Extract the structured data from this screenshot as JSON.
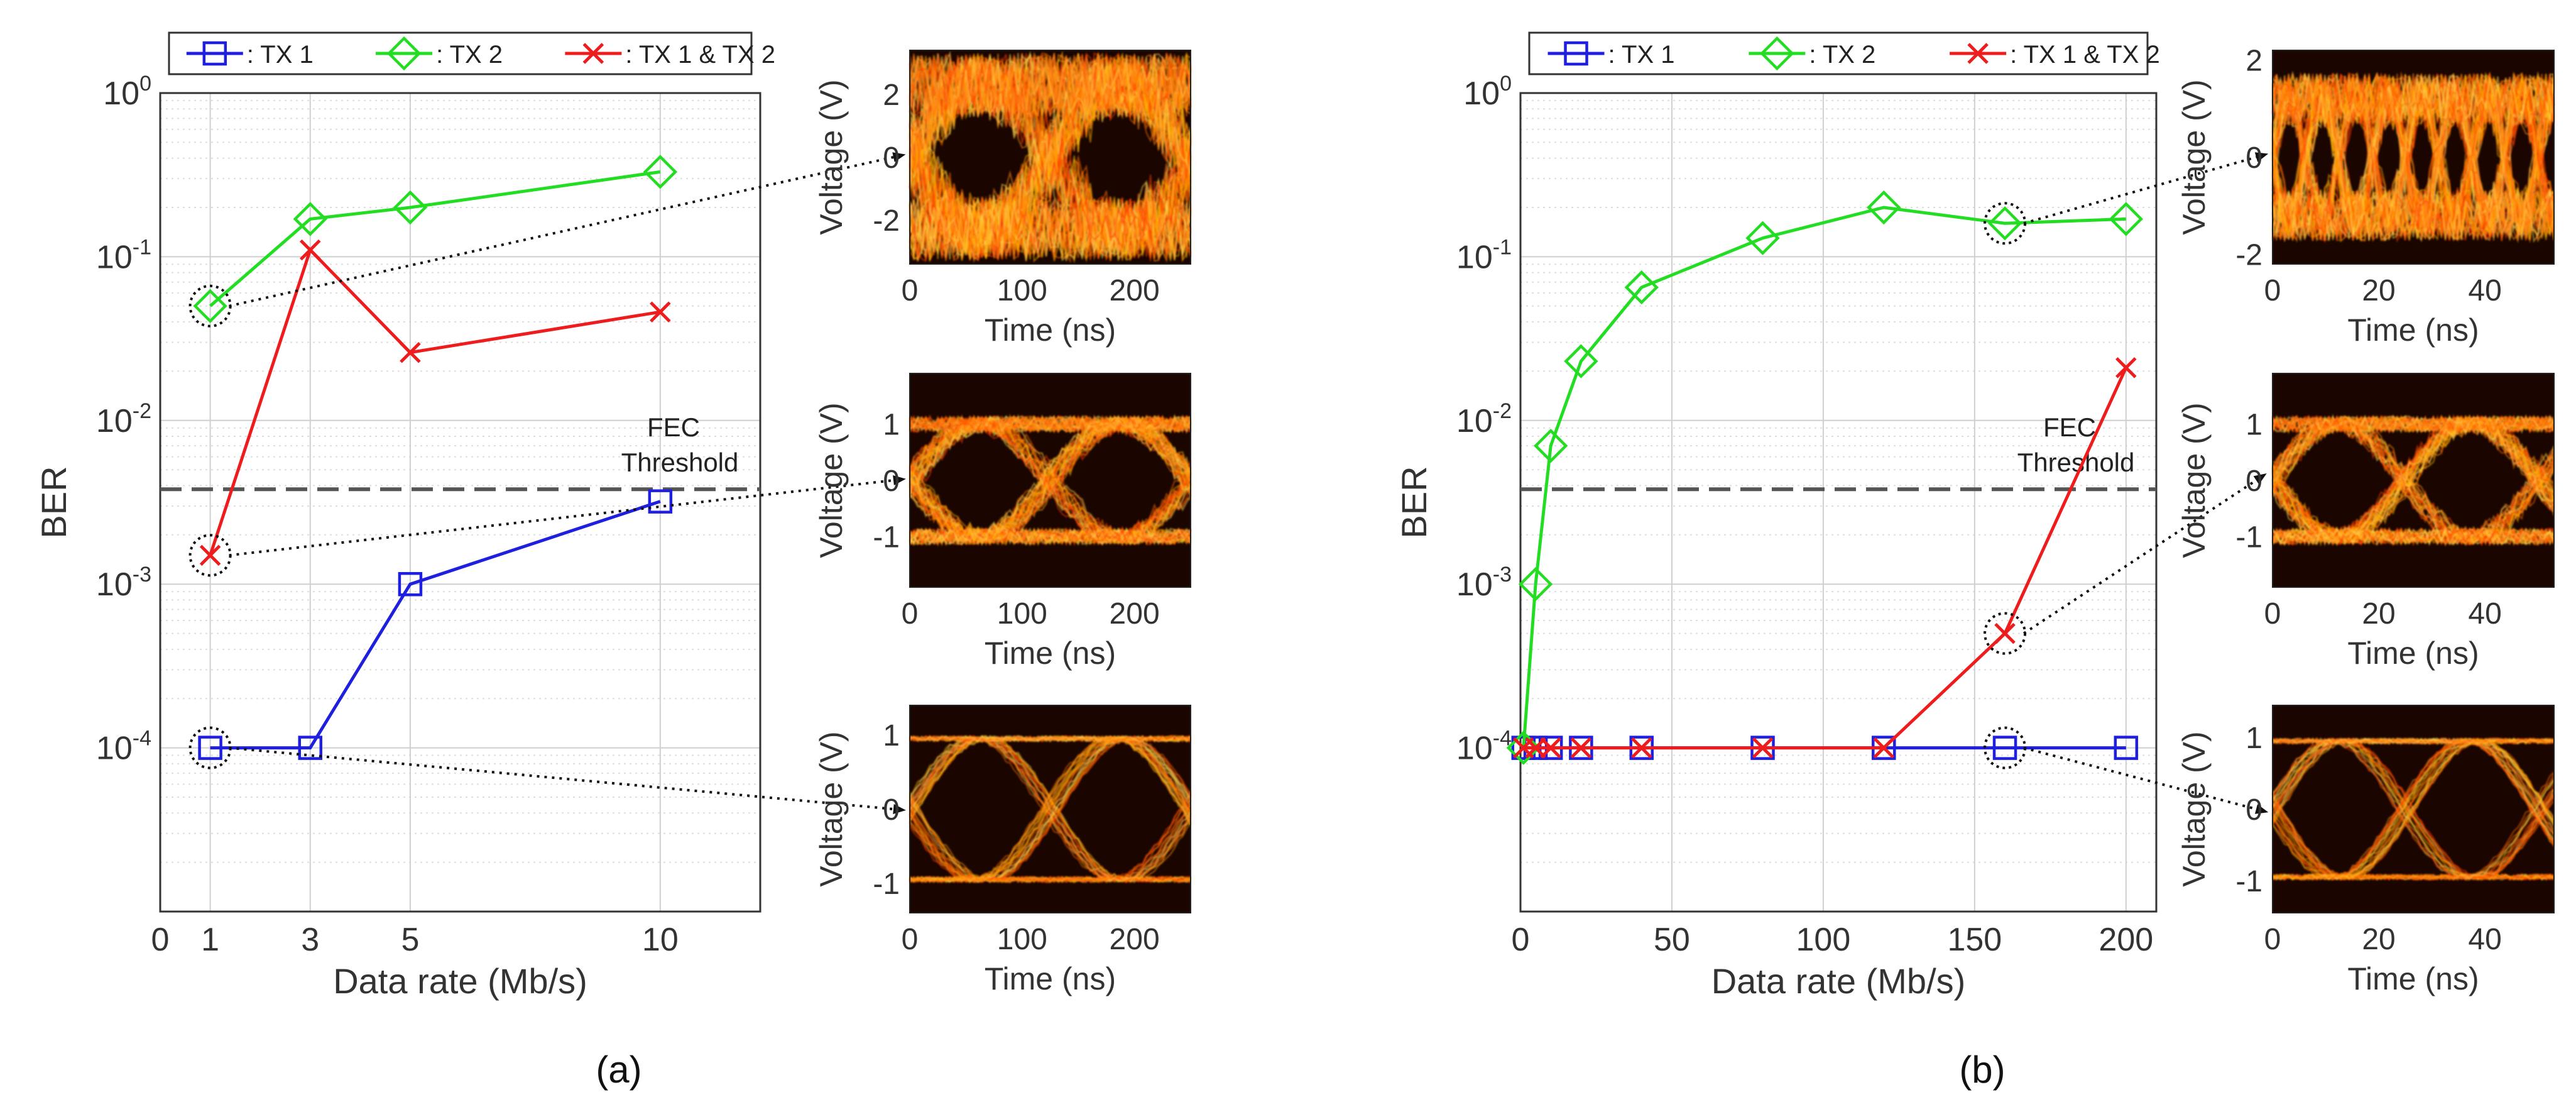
{
  "figure": {
    "panel_labels": [
      "(a)",
      "(b)"
    ],
    "ber_tick_labels": [
      {
        "base": "10",
        "exp": "0"
      },
      {
        "base": "10",
        "exp": "-1"
      },
      {
        "base": "10",
        "exp": "-2"
      },
      {
        "base": "10",
        "exp": "-3"
      },
      {
        "base": "10",
        "exp": "-4"
      }
    ],
    "eye_ylabel": "Voltage (V)",
    "eye_xlabel": "Time (ns)"
  },
  "colors": {
    "tx1": "#1f1fe0",
    "tx2": "#22dd22",
    "both": "#ee1c1c",
    "threshold": "#555555",
    "grid_major": "#cfcfcf",
    "grid_minor": "#dedede",
    "eye_bg": "#1a0500"
  },
  "chart_data": [
    {
      "type": "line",
      "panel": "(a)",
      "xlabel": "Data rate (Mb/s)",
      "ylabel": "BER",
      "y_scale": "log",
      "xlim": [
        0,
        12
      ],
      "ylim": [
        1e-05,
        1
      ],
      "x_ticks": [
        0,
        1,
        3,
        5,
        10
      ],
      "grid": true,
      "legend": {
        "position": "top",
        "entries": [
          ": TX 1",
          ": TX 2",
          ": TX 1 & TX 2"
        ]
      },
      "series": [
        {
          "name": ": TX 1",
          "marker": "square",
          "x": [
            1,
            3,
            5,
            10
          ],
          "y": [
            0.0001,
            0.0001,
            0.001,
            0.0032
          ]
        },
        {
          "name": ": TX 2",
          "marker": "diamond",
          "x": [
            1,
            3,
            5,
            10
          ],
          "y": [
            0.05,
            0.17,
            0.2,
            0.33
          ]
        },
        {
          "name": ": TX 1 & TX 2",
          "marker": "x",
          "x": [
            1,
            3,
            5,
            10
          ],
          "y": [
            0.0015,
            0.11,
            0.026,
            0.046
          ]
        }
      ],
      "threshold": {
        "y": 0.0038,
        "label_lines": [
          "FEC",
          "Threshold"
        ]
      },
      "annotations": [
        {
          "series": ": TX 2",
          "x": 1,
          "y": 0.05,
          "target_eye": 0
        },
        {
          "series": ": TX 1 & TX 2",
          "x": 1,
          "y": 0.0015,
          "target_eye": 1
        },
        {
          "series": ": TX 1",
          "x": 1,
          "y": 0.0001,
          "target_eye": 2
        }
      ]
    },
    {
      "type": "line",
      "panel": "(b)",
      "xlabel": "Data rate (Mb/s)",
      "ylabel": "BER",
      "y_scale": "log",
      "xlim": [
        0,
        210
      ],
      "ylim": [
        1e-05,
        1
      ],
      "x_ticks": [
        0,
        50,
        100,
        150,
        200
      ],
      "grid": true,
      "legend": {
        "position": "top",
        "entries": [
          ": TX 1",
          ": TX 2",
          ": TX 1 & TX 2"
        ]
      },
      "series": [
        {
          "name": ": TX 1",
          "marker": "square",
          "x": [
            1,
            5,
            10,
            20,
            40,
            80,
            120,
            160,
            200
          ],
          "y": [
            0.0001,
            0.0001,
            0.0001,
            0.0001,
            0.0001,
            0.0001,
            0.0001,
            0.0001,
            0.0001
          ]
        },
        {
          "name": ": TX 2",
          "marker": "diamond",
          "x": [
            1,
            5,
            10,
            20,
            40,
            80,
            120,
            160,
            200
          ],
          "y": [
            0.0001,
            0.001,
            0.007,
            0.023,
            0.065,
            0.13,
            0.2,
            0.16,
            0.17
          ]
        },
        {
          "name": ": TX 1 & TX 2",
          "marker": "x",
          "x": [
            1,
            5,
            10,
            20,
            40,
            80,
            120,
            160,
            200
          ],
          "y": [
            0.0001,
            0.0001,
            0.0001,
            0.0001,
            0.0001,
            0.0001,
            0.0001,
            0.0005,
            0.021
          ]
        }
      ],
      "threshold": {
        "y": 0.0038,
        "label_lines": [
          "FEC",
          "Threshold"
        ]
      },
      "annotations": [
        {
          "series": ": TX 2",
          "x": 160,
          "y": 0.16,
          "target_eye": 0
        },
        {
          "series": ": TX 1 & TX 2",
          "x": 160,
          "y": 0.0005,
          "target_eye": 1
        },
        {
          "series": ": TX 1",
          "x": 160,
          "y": 0.0001,
          "target_eye": 2
        }
      ]
    },
    {
      "type": "heatmap",
      "panel": "(a) eye 1",
      "xlabel": "Time (ns)",
      "ylabel": "Voltage (V)",
      "xlim": [
        0,
        250
      ],
      "ylim": [
        -3.4,
        3.4
      ],
      "x_ticks": [
        0,
        100,
        200
      ],
      "y_ticks": [
        -2,
        0,
        2
      ],
      "eye_opening": "closed",
      "amplitude": 2.3,
      "symbol_period": 125
    },
    {
      "type": "heatmap",
      "panel": "(a) eye 2",
      "xlabel": "Time (ns)",
      "ylabel": "Voltage (V)",
      "xlim": [
        0,
        250
      ],
      "ylim": [
        -1.9,
        1.9
      ],
      "x_ticks": [
        0,
        100,
        200
      ],
      "y_ticks": [
        -1,
        0,
        1
      ],
      "eye_opening": "partial",
      "amplitude": 1.0,
      "symbol_period": 125
    },
    {
      "type": "heatmap",
      "panel": "(a) eye 3",
      "xlabel": "Time (ns)",
      "ylabel": "Voltage (V)",
      "xlim": [
        0,
        250
      ],
      "ylim": [
        -1.4,
        1.4
      ],
      "x_ticks": [
        0,
        100,
        200
      ],
      "y_ticks": [
        -1,
        0,
        1
      ],
      "eye_opening": "open",
      "amplitude": 0.95,
      "symbol_period": 125
    },
    {
      "type": "heatmap",
      "panel": "(b) eye 1",
      "xlabel": "Time (ns)",
      "ylabel": "Voltage (V)",
      "xlim": [
        0,
        53
      ],
      "ylim": [
        -2.2,
        2.2
      ],
      "x_ticks": [
        0,
        20,
        40
      ],
      "y_ticks": [
        -2,
        0,
        2
      ],
      "eye_opening": "closed",
      "amplitude": 1.2,
      "symbol_period": 6.25
    },
    {
      "type": "heatmap",
      "panel": "(b) eye 2",
      "xlabel": "Time (ns)",
      "ylabel": "Voltage (V)",
      "xlim": [
        0,
        53
      ],
      "ylim": [
        -1.9,
        1.9
      ],
      "x_ticks": [
        0,
        20,
        40
      ],
      "y_ticks": [
        -1,
        0,
        1
      ],
      "eye_opening": "partial",
      "amplitude": 1.0,
      "symbol_period": 25
    },
    {
      "type": "heatmap",
      "panel": "(b) eye 3",
      "xlabel": "Time (ns)",
      "ylabel": "Voltage (V)",
      "xlim": [
        0,
        53
      ],
      "ylim": [
        -1.45,
        1.45
      ],
      "x_ticks": [
        0,
        20,
        40
      ],
      "y_ticks": [
        -1,
        0,
        1
      ],
      "eye_opening": "open",
      "amplitude": 0.95,
      "symbol_period": 25
    }
  ]
}
